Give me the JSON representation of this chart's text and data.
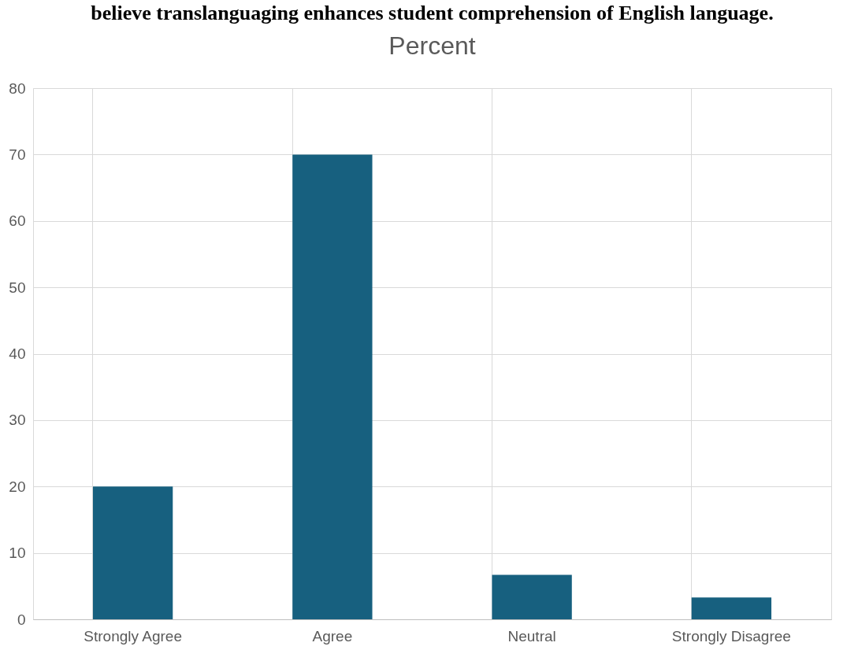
{
  "chart_data": {
    "type": "bar",
    "title": "believe translanguaging enhances student comprehension of English language.",
    "subtitle": "Percent",
    "categories": [
      "Strongly Agree",
      "Agree",
      "Neutral",
      "Strongly Disagree"
    ],
    "values": [
      20,
      70,
      6.7,
      3.3
    ],
    "color": "#17607f",
    "ylim": [
      0,
      80
    ],
    "yticks": [
      0,
      10,
      20,
      30,
      40,
      50,
      60,
      70,
      80
    ],
    "grid": true
  }
}
